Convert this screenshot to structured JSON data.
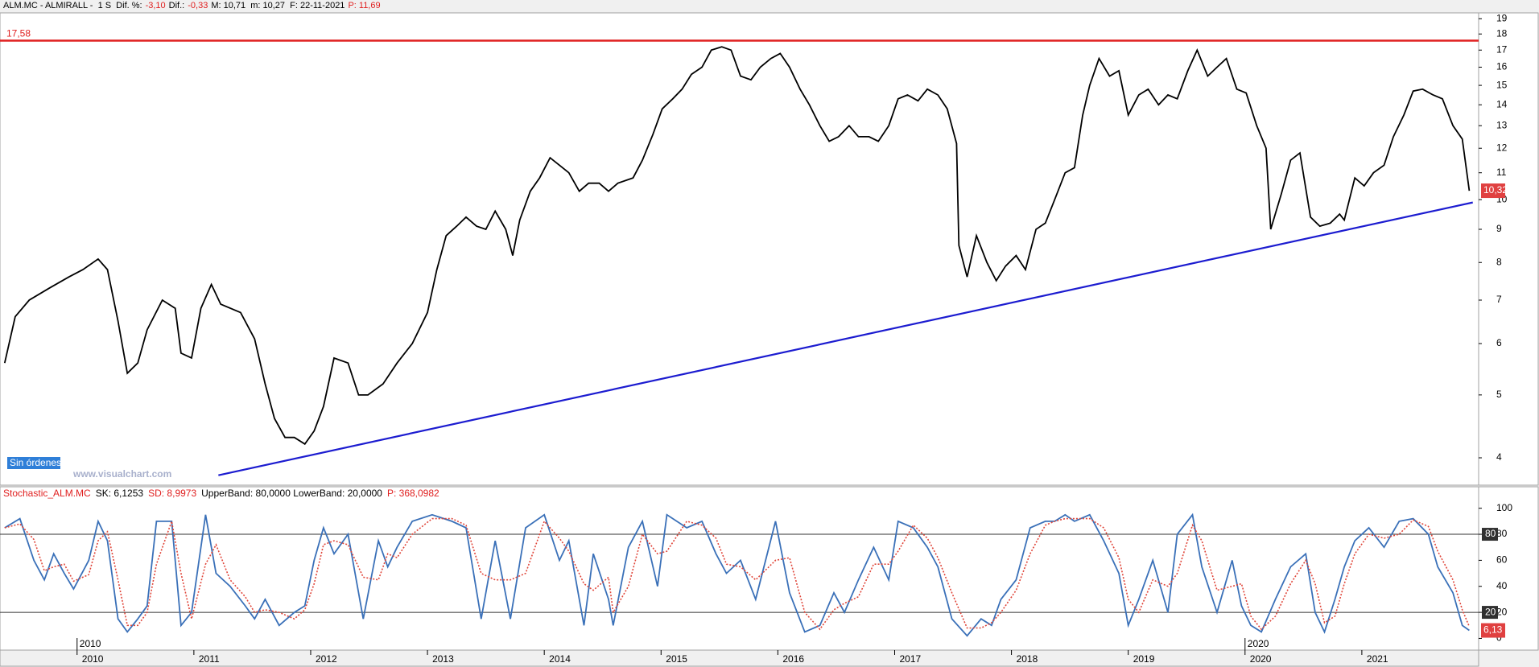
{
  "header": {
    "segments": [
      {
        "text": "ALM.MC - ALMIRALL -  1 S  Dif. %:",
        "color": "#000000"
      },
      {
        "text": "-3,10",
        "color": "#e02020"
      },
      {
        "text": "Dif.:",
        "color": "#000000"
      },
      {
        "text": "-0,33",
        "color": "#e02020"
      },
      {
        "text": "M: 10,71  m: 10,27  F: 22-11-2021",
        "color": "#000000"
      },
      {
        "text": "P: 11,69",
        "color": "#e02020"
      }
    ]
  },
  "chart_data": [
    {
      "type": "line",
      "log": true,
      "x": [
        2009.38,
        2009.47,
        2009.59,
        2009.76,
        2009.93,
        2010.05,
        2010.18,
        2010.26,
        2010.35,
        2010.43,
        2010.52,
        2010.6,
        2010.73,
        2010.84,
        2010.89,
        2010.98,
        2011.06,
        2011.15,
        2011.23,
        2011.4,
        2011.52,
        2011.61,
        2011.69,
        2011.78,
        2011.86,
        2011.95,
        2012.03,
        2012.11,
        2012.2,
        2012.32,
        2012.41,
        2012.49,
        2012.62,
        2012.74,
        2012.87,
        2013.0,
        2013.08,
        2013.16,
        2013.25,
        2013.33,
        2013.42,
        2013.5,
        2013.58,
        2013.67,
        2013.73,
        2013.79,
        2013.88,
        2013.96,
        2014.05,
        2014.13,
        2014.21,
        2014.3,
        2014.38,
        2014.47,
        2014.55,
        2014.63,
        2014.76,
        2014.84,
        2014.93,
        2015.01,
        2015.1,
        2015.18,
        2015.26,
        2015.35,
        2015.43,
        2015.52,
        2015.6,
        2015.68,
        2015.77,
        2015.85,
        2015.94,
        2016.02,
        2016.1,
        2016.19,
        2016.27,
        2016.36,
        2016.44,
        2016.52,
        2016.61,
        2016.69,
        2016.78,
        2016.86,
        2016.95,
        2017.03,
        2017.11,
        2017.2,
        2017.28,
        2017.37,
        2017.45,
        2017.53,
        2017.55,
        2017.62,
        2017.7,
        2017.79,
        2017.87,
        2017.95,
        2018.04,
        2018.12,
        2018.21,
        2018.29,
        2018.37,
        2018.46,
        2018.54,
        2018.61,
        2018.67,
        2018.75,
        2018.84,
        2018.92,
        2019.0,
        2019.09,
        2019.17,
        2019.26,
        2019.34,
        2019.42,
        2019.51,
        2019.59,
        2019.68,
        2019.76,
        2019.84,
        2019.93,
        2020.01,
        2020.1,
        2020.18,
        2020.22,
        2020.31,
        2020.39,
        2020.47,
        2020.56,
        2020.64,
        2020.73,
        2020.81,
        2020.85,
        2020.94,
        2021.02,
        2021.1,
        2021.19,
        2021.27,
        2021.36,
        2021.44,
        2021.52,
        2021.61,
        2021.69,
        2021.78,
        2021.86,
        2021.92
      ],
      "series": [
        {
          "color": "#000000",
          "values": [
            5.6,
            6.6,
            7.0,
            7.3,
            7.6,
            7.8,
            8.1,
            7.8,
            6.5,
            5.4,
            5.6,
            6.3,
            7.0,
            6.8,
            5.8,
            5.7,
            6.8,
            7.4,
            6.9,
            6.7,
            6.1,
            5.2,
            4.6,
            4.3,
            4.3,
            4.2,
            4.4,
            4.8,
            5.7,
            5.6,
            5.0,
            5.0,
            5.2,
            5.6,
            6.0,
            6.7,
            7.8,
            8.8,
            9.1,
            9.4,
            9.1,
            9.0,
            9.6,
            9.0,
            8.2,
            9.3,
            10.3,
            10.8,
            11.6,
            11.3,
            11.0,
            10.3,
            10.6,
            10.6,
            10.3,
            10.6,
            10.8,
            11.5,
            12.6,
            13.8,
            14.3,
            14.8,
            15.6,
            16.0,
            17.0,
            17.2,
            17.0,
            15.5,
            15.3,
            16.0,
            16.5,
            16.8,
            16.0,
            14.8,
            14.0,
            13.0,
            12.3,
            12.5,
            13.0,
            12.5,
            12.5,
            12.3,
            13.0,
            14.3,
            14.5,
            14.2,
            14.8,
            14.5,
            13.8,
            12.2,
            8.5,
            7.6,
            8.8,
            8.0,
            7.5,
            7.9,
            8.2,
            7.8,
            9.0,
            9.2,
            10.0,
            11.0,
            11.2,
            13.5,
            15.0,
            16.5,
            15.5,
            15.8,
            13.5,
            14.5,
            14.8,
            14.0,
            14.5,
            14.3,
            15.8,
            17.0,
            15.5,
            16.0,
            16.5,
            14.8,
            14.6,
            13.0,
            12.0,
            9.0,
            10.2,
            11.5,
            11.8,
            9.4,
            9.1,
            9.2,
            9.5,
            9.3,
            10.8,
            10.5,
            11.0,
            11.3,
            12.5,
            13.5,
            14.7,
            14.8,
            14.5,
            14.3,
            13.0,
            12.4,
            10.32
          ]
        }
      ],
      "last_label": "10,32",
      "last_color": "#e04040",
      "xlim": [
        2009.34,
        2022.0
      ],
      "xticks": [
        2010,
        2011,
        2012,
        2013,
        2014,
        2015,
        2016,
        2017,
        2018,
        2019,
        2020,
        2021
      ],
      "ylim": [
        3.63,
        19.4
      ],
      "yticks": [
        4,
        5,
        6,
        7,
        8,
        9,
        10,
        11,
        12,
        13,
        14,
        15,
        16,
        17,
        18,
        19
      ],
      "hline": {
        "value": 17.58,
        "label": "17,58",
        "color": "#e02020"
      },
      "trendline": {
        "x": [
          2011.21,
          2021.95
        ],
        "values": [
          3.76,
          9.9
        ],
        "color": "#1c1cd0"
      },
      "annotations": [
        "Sin órdenes",
        "www.visualchart.com"
      ]
    },
    {
      "type": "line",
      "header": [
        {
          "text": "Stochastic_ALM.MC",
          "color": "#e02020"
        },
        {
          "text": "SK: 6,1253",
          "color": "#000000"
        },
        {
          "text": "SD: 8,9973",
          "color": "#e02020"
        },
        {
          "text": "UpperBand: 80,0000  LowerBand: 20,0000",
          "color": "#000000"
        },
        {
          "text": "P: 368,0982",
          "color": "#e02020"
        }
      ],
      "x": [
        2009.38,
        2009.51,
        2009.63,
        2009.72,
        2009.8,
        2009.89,
        2009.97,
        2010.1,
        2010.18,
        2010.26,
        2010.35,
        2010.43,
        2010.52,
        2010.6,
        2010.68,
        2010.81,
        2010.89,
        2010.98,
        2011.1,
        2011.19,
        2011.31,
        2011.44,
        2011.52,
        2011.61,
        2011.73,
        2011.86,
        2011.95,
        2012.03,
        2012.11,
        2012.2,
        2012.32,
        2012.45,
        2012.58,
        2012.66,
        2012.74,
        2012.87,
        2013.04,
        2013.21,
        2013.33,
        2013.46,
        2013.58,
        2013.71,
        2013.84,
        2014.0,
        2014.13,
        2014.21,
        2014.34,
        2014.42,
        2014.55,
        2014.59,
        2014.72,
        2014.84,
        2014.97,
        2015.05,
        2015.22,
        2015.35,
        2015.47,
        2015.56,
        2015.68,
        2015.81,
        2015.98,
        2016.1,
        2016.23,
        2016.36,
        2016.48,
        2016.57,
        2016.69,
        2016.82,
        2016.95,
        2017.03,
        2017.16,
        2017.28,
        2017.37,
        2017.49,
        2017.62,
        2017.74,
        2017.83,
        2017.91,
        2018.04,
        2018.16,
        2018.29,
        2018.37,
        2018.46,
        2018.54,
        2018.67,
        2018.79,
        2018.92,
        2019.0,
        2019.09,
        2019.21,
        2019.34,
        2019.42,
        2019.55,
        2019.63,
        2019.76,
        2019.89,
        2019.97,
        2020.05,
        2020.14,
        2020.26,
        2020.39,
        2020.52,
        2020.6,
        2020.68,
        2020.77,
        2020.85,
        2020.94,
        2021.06,
        2021.19,
        2021.32,
        2021.44,
        2021.57,
        2021.65,
        2021.78,
        2021.86,
        2021.92
      ],
      "series": [
        {
          "color": "#3a70b8",
          "dash": false,
          "values": [
            85,
            92,
            60,
            45,
            65,
            50,
            38,
            60,
            90,
            75,
            15,
            5,
            15,
            25,
            90,
            90,
            10,
            20,
            95,
            50,
            40,
            25,
            15,
            30,
            10,
            20,
            25,
            60,
            85,
            65,
            80,
            15,
            75,
            55,
            70,
            90,
            95,
            90,
            85,
            15,
            75,
            15,
            85,
            95,
            60,
            75,
            10,
            65,
            30,
            10,
            70,
            90,
            40,
            95,
            85,
            90,
            65,
            50,
            60,
            30,
            90,
            35,
            5,
            10,
            35,
            20,
            45,
            70,
            45,
            90,
            85,
            70,
            55,
            15,
            2,
            15,
            10,
            30,
            45,
            85,
            90,
            90,
            95,
            90,
            95,
            75,
            50,
            10,
            30,
            60,
            20,
            80,
            95,
            55,
            20,
            60,
            25,
            10,
            5,
            30,
            55,
            65,
            20,
            5,
            30,
            55,
            75,
            85,
            70,
            90,
            92,
            80,
            55,
            35,
            10,
            6.1253
          ]
        },
        {
          "color": "#e0463a",
          "dash": true,
          "values": [
            85,
            88,
            76,
            52,
            55,
            57,
            44,
            49,
            75,
            82,
            45,
            10,
            10,
            20,
            57,
            90,
            50,
            15,
            57,
            72,
            45,
            32,
            20,
            22,
            20,
            15,
            22,
            42,
            72,
            75,
            72,
            47,
            45,
            65,
            62,
            80,
            92,
            92,
            87,
            50,
            45,
            45,
            50,
            90,
            77,
            67,
            42,
            37,
            47,
            20,
            40,
            80,
            65,
            67,
            90,
            87,
            77,
            57,
            55,
            45,
            60,
            62,
            20,
            7,
            22,
            27,
            32,
            57,
            57,
            67,
            87,
            77,
            62,
            35,
            8,
            8,
            12,
            20,
            37,
            65,
            87,
            90,
            92,
            92,
            92,
            85,
            62,
            30,
            20,
            45,
            40,
            50,
            87,
            75,
            37,
            40,
            42,
            17,
            7,
            17,
            42,
            60,
            42,
            12,
            17,
            42,
            65,
            80,
            77,
            80,
            91,
            86,
            67,
            45,
            22,
            8.9973
          ]
        }
      ],
      "last_label": "6,13",
      "last_color": "#e04040",
      "xlim": [
        2009.34,
        2022.0
      ],
      "xticks": [
        2010,
        2011,
        2012,
        2013,
        2014,
        2015,
        2016,
        2017,
        2018,
        2019,
        2020,
        2021
      ],
      "ylim": [
        -9,
        116.5
      ],
      "yticks": [
        0,
        20,
        40,
        60,
        80,
        100
      ],
      "bands": [
        80,
        20
      ]
    }
  ]
}
